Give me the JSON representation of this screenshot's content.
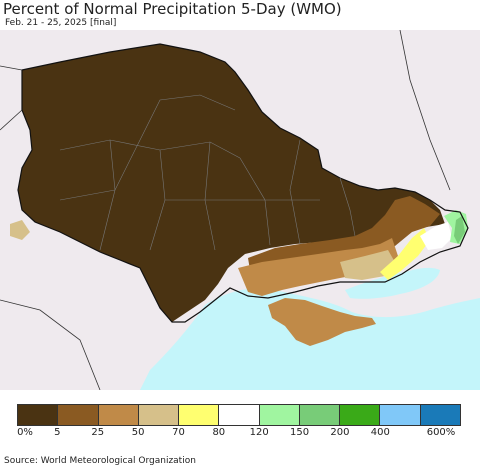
{
  "header": {
    "title": "Percent of Normal Precipitation 5-Day (WMO)",
    "subtitle": "Feb. 21 - 25, 2025 [final]"
  },
  "legend": {
    "colors": [
      "#4a3312",
      "#8a5a22",
      "#c08a48",
      "#d6c08a",
      "#ffff70",
      "#ffffff",
      "#a0f5a0",
      "#78cc78",
      "#3aaa18",
      "#80c8f8",
      "#1a7ab8"
    ],
    "labels": [
      "0%",
      "5",
      "25",
      "50",
      "70",
      "80",
      "120",
      "150",
      "200",
      "400",
      "600%"
    ]
  },
  "footer": {
    "source": "Source: World Meteorological Organization"
  }
}
